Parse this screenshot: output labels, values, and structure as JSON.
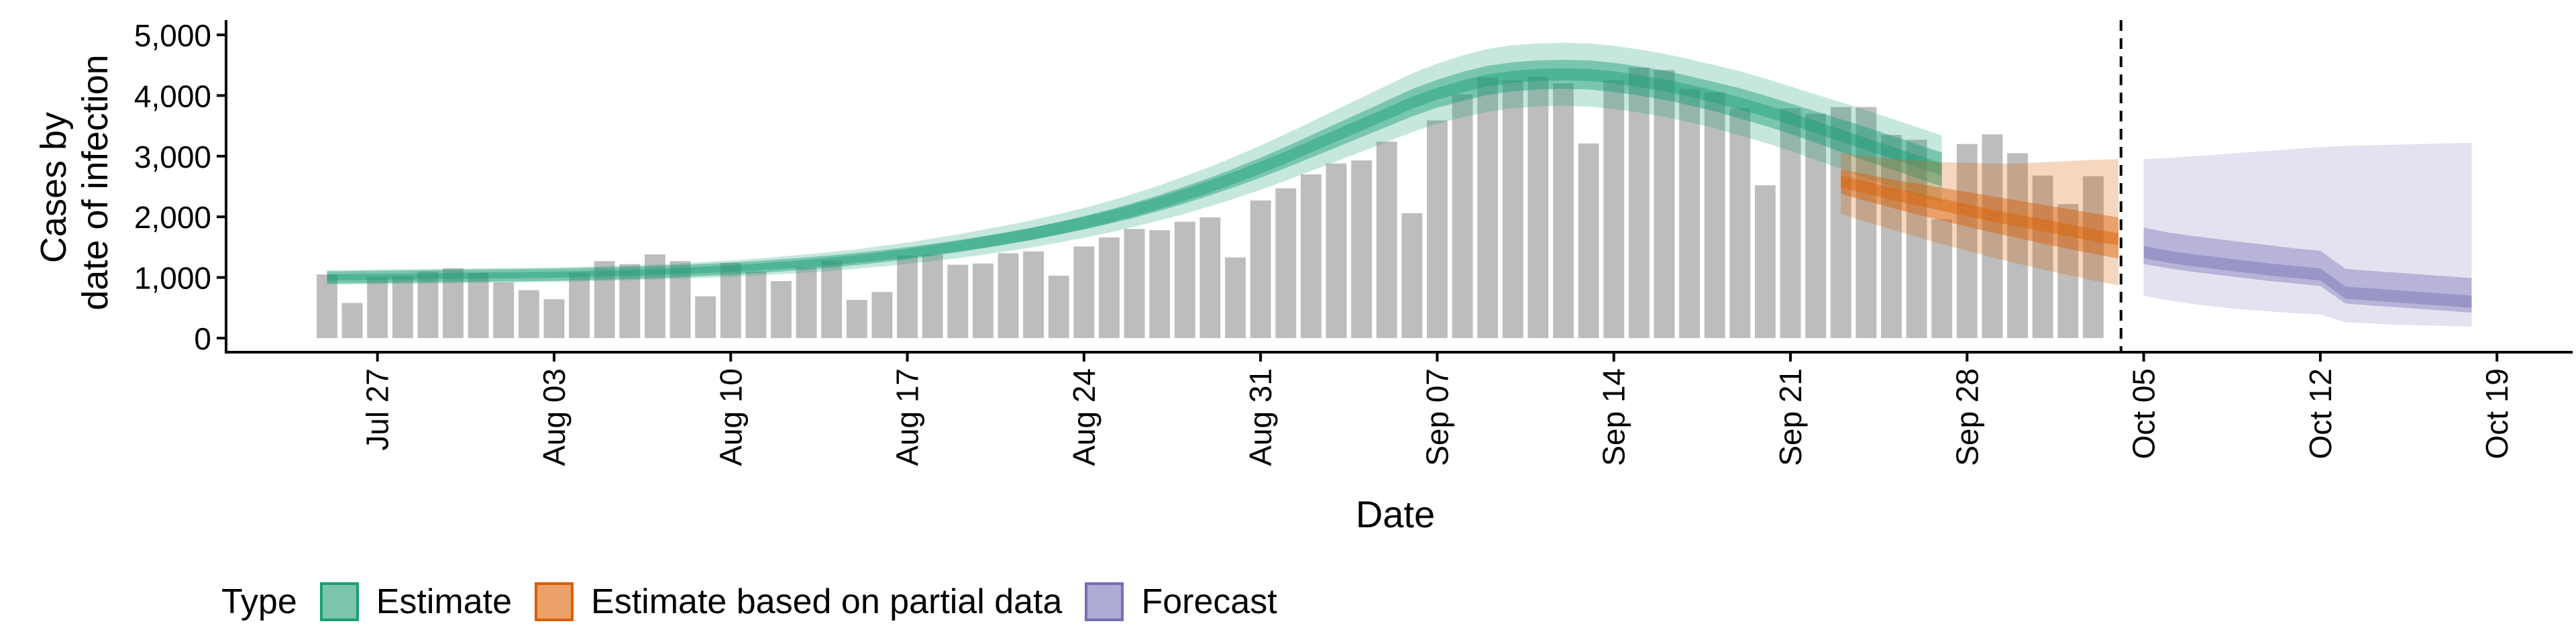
{
  "chart_data": {
    "type": "bar",
    "xlabel": "Date",
    "ylabel_lines": [
      "Cases by",
      "date of infection"
    ],
    "ylim": [
      0,
      5200
    ],
    "yticks": [
      0,
      1000,
      2000,
      3000,
      4000,
      5000
    ],
    "ytick_labels": [
      "0",
      "1,000",
      "2,000",
      "3,000",
      "4,000",
      "5,000"
    ],
    "xticks": [
      "2020-07-27",
      "2020-08-03",
      "2020-08-10",
      "2020-08-17",
      "2020-08-24",
      "2020-08-31",
      "2020-09-07",
      "2020-09-14",
      "2020-09-21",
      "2020-09-28",
      "2020-10-05",
      "2020-10-12",
      "2020-10-19"
    ],
    "xtick_labels": [
      "Jul 27",
      "Aug 03",
      "Aug 10",
      "Aug 17",
      "Aug 24",
      "Aug 31",
      "Sep 07",
      "Sep 14",
      "Sep 21",
      "Sep 28",
      "Oct 05",
      "Oct 12",
      "Oct 19"
    ],
    "xlim": [
      "2020-07-21",
      "2020-10-22"
    ],
    "vline_date": "2020-10-04",
    "observed_cases": {
      "start_date": "2020-07-25",
      "values": [
        1050,
        580,
        1010,
        1020,
        1100,
        1150,
        1080,
        920,
        790,
        640,
        1080,
        1270,
        1220,
        1380,
        1270,
        690,
        1240,
        1100,
        940,
        1170,
        1280,
        630,
        760,
        1360,
        1380,
        1210,
        1230,
        1400,
        1430,
        1030,
        1510,
        1660,
        1800,
        1780,
        1920,
        1990,
        1330,
        2270,
        2470,
        2700,
        2880,
        2930,
        3240,
        2060,
        3590,
        4020,
        4300,
        4250,
        4310,
        4200,
        3210,
        4250,
        4460,
        4420,
        4110,
        4050,
        3790,
        2520,
        3790,
        3700,
        3810,
        3810,
        3350,
        3270,
        1960,
        3200,
        3360,
        3050,
        2680,
        2210,
        2670
      ]
    },
    "series": [
      {
        "name": "Estimate",
        "color": "#1b9e77",
        "start_date": "2020-07-25",
        "median": [
          1000,
          1005,
          1010,
          1015,
          1020,
          1025,
          1030,
          1035,
          1040,
          1045,
          1055,
          1065,
          1075,
          1090,
          1105,
          1125,
          1145,
          1170,
          1200,
          1230,
          1265,
          1305,
          1350,
          1400,
          1455,
          1515,
          1580,
          1650,
          1725,
          1810,
          1900,
          2000,
          2110,
          2230,
          2360,
          2500,
          2650,
          2810,
          2980,
          3160,
          3340,
          3520,
          3700,
          3880,
          4030,
          4150,
          4250,
          4310,
          4340,
          4350,
          4340,
          4300,
          4240,
          4170,
          4080,
          3980,
          3870,
          3750,
          3620,
          3480,
          3340,
          3200,
          3060,
          2920,
          2780
        ],
        "inner_lo": [
          950,
          955,
          960,
          965,
          970,
          975,
          980,
          985,
          990,
          995,
          1005,
          1015,
          1025,
          1040,
          1055,
          1070,
          1090,
          1115,
          1140,
          1170,
          1200,
          1240,
          1280,
          1325,
          1375,
          1430,
          1490,
          1555,
          1625,
          1705,
          1790,
          1885,
          1985,
          2100,
          2220,
          2355,
          2495,
          2645,
          2805,
          2975,
          3145,
          3315,
          3485,
          3655,
          3800,
          3910,
          4010,
          4070,
          4100,
          4110,
          4100,
          4060,
          4000,
          3930,
          3840,
          3740,
          3620,
          3500,
          3370,
          3220,
          3070,
          2920,
          2780,
          2640,
          2500
        ],
        "inner_hi": [
          1050,
          1055,
          1060,
          1065,
          1070,
          1075,
          1080,
          1085,
          1090,
          1095,
          1105,
          1115,
          1125,
          1140,
          1155,
          1180,
          1200,
          1225,
          1260,
          1290,
          1330,
          1370,
          1420,
          1475,
          1535,
          1600,
          1670,
          1745,
          1825,
          1915,
          2010,
          2115,
          2235,
          2360,
          2500,
          2645,
          2805,
          2975,
          3155,
          3345,
          3535,
          3725,
          3915,
          4105,
          4260,
          4390,
          4490,
          4550,
          4580,
          4590,
          4580,
          4540,
          4480,
          4410,
          4320,
          4220,
          4120,
          4000,
          3870,
          3740,
          3610,
          3480,
          3340,
          3200,
          3060
        ],
        "outer_lo": [
          880,
          885,
          890,
          895,
          900,
          905,
          910,
          915,
          920,
          925,
          935,
          945,
          955,
          965,
          980,
          995,
          1010,
          1030,
          1055,
          1080,
          1110,
          1145,
          1180,
          1225,
          1270,
          1320,
          1375,
          1435,
          1500,
          1575,
          1655,
          1740,
          1835,
          1940,
          2050,
          2175,
          2305,
          2445,
          2595,
          2755,
          2915,
          3075,
          3235,
          3395,
          3535,
          3640,
          3730,
          3790,
          3820,
          3830,
          3820,
          3780,
          3720,
          3650,
          3560,
          3460,
          3340,
          3220,
          3090,
          2940,
          2790,
          2640,
          2500,
          2360,
          2220
        ],
        "outer_hi": [
          1120,
          1125,
          1130,
          1135,
          1140,
          1145,
          1150,
          1155,
          1160,
          1165,
          1175,
          1185,
          1195,
          1215,
          1230,
          1255,
          1280,
          1310,
          1345,
          1380,
          1420,
          1465,
          1520,
          1575,
          1640,
          1710,
          1785,
          1865,
          1950,
          2045,
          2145,
          2260,
          2385,
          2520,
          2670,
          2825,
          2995,
          3175,
          3365,
          3565,
          3765,
          3965,
          4165,
          4365,
          4525,
          4660,
          4770,
          4830,
          4860,
          4870,
          4860,
          4820,
          4760,
          4690,
          4600,
          4500,
          4400,
          4280,
          4150,
          4020,
          3890,
          3760,
          3620,
          3480,
          3340
        ]
      },
      {
        "name": "Estimate based on partial data",
        "color": "#d95f02",
        "start_date": "2020-09-23",
        "median": [
          2580,
          2480,
          2380,
          2290,
          2200,
          2110,
          2020,
          1940,
          1860,
          1780,
          1700,
          1630
        ],
        "inner_lo": [
          2380,
          2260,
          2150,
          2040,
          1940,
          1840,
          1740,
          1650,
          1560,
          1470,
          1390,
          1310
        ],
        "inner_hi": [
          2780,
          2700,
          2620,
          2550,
          2480,
          2410,
          2340,
          2270,
          2200,
          2130,
          2060,
          1990
        ],
        "outer_lo": [
          2050,
          1920,
          1790,
          1670,
          1550,
          1440,
          1330,
          1230,
          1130,
          1040,
          950,
          870
        ],
        "outer_hi": [
          3050,
          3000,
          2960,
          2930,
          2900,
          2890,
          2880,
          2880,
          2900,
          2920,
          2940,
          2950
        ]
      },
      {
        "name": "Forecast",
        "color": "#7570b3",
        "start_date": "2020-10-05",
        "median": [
          1420,
          1340,
          1280,
          1230,
          1180,
          1130,
          1090,
          1050,
          750,
          720,
          690,
          660,
          630,
          600
        ],
        "inner_lo": [
          1220,
          1150,
          1090,
          1040,
          990,
          940,
          900,
          860,
          570,
          540,
          510,
          480,
          450,
          420
        ],
        "inner_hi": [
          1820,
          1740,
          1680,
          1630,
          1580,
          1530,
          1480,
          1440,
          1140,
          1110,
          1080,
          1050,
          1020,
          990
        ],
        "outer_lo": [
          700,
          620,
          560,
          510,
          470,
          440,
          410,
          390,
          260,
          240,
          220,
          210,
          200,
          190
        ],
        "outer_hi": [
          2950,
          2970,
          3000,
          3030,
          3060,
          3090,
          3120,
          3150,
          3170,
          3180,
          3190,
          3200,
          3210,
          3220
        ]
      }
    ],
    "legend": {
      "title": "Type",
      "position": "bottom",
      "items": [
        {
          "label": "Estimate",
          "color": "#1b9e77"
        },
        {
          "label": "Estimate based on partial data",
          "color": "#d95f02"
        },
        {
          "label": "Forecast",
          "color": "#7570b3"
        }
      ]
    },
    "grid": false,
    "bar_color": "#bdbdbd"
  }
}
